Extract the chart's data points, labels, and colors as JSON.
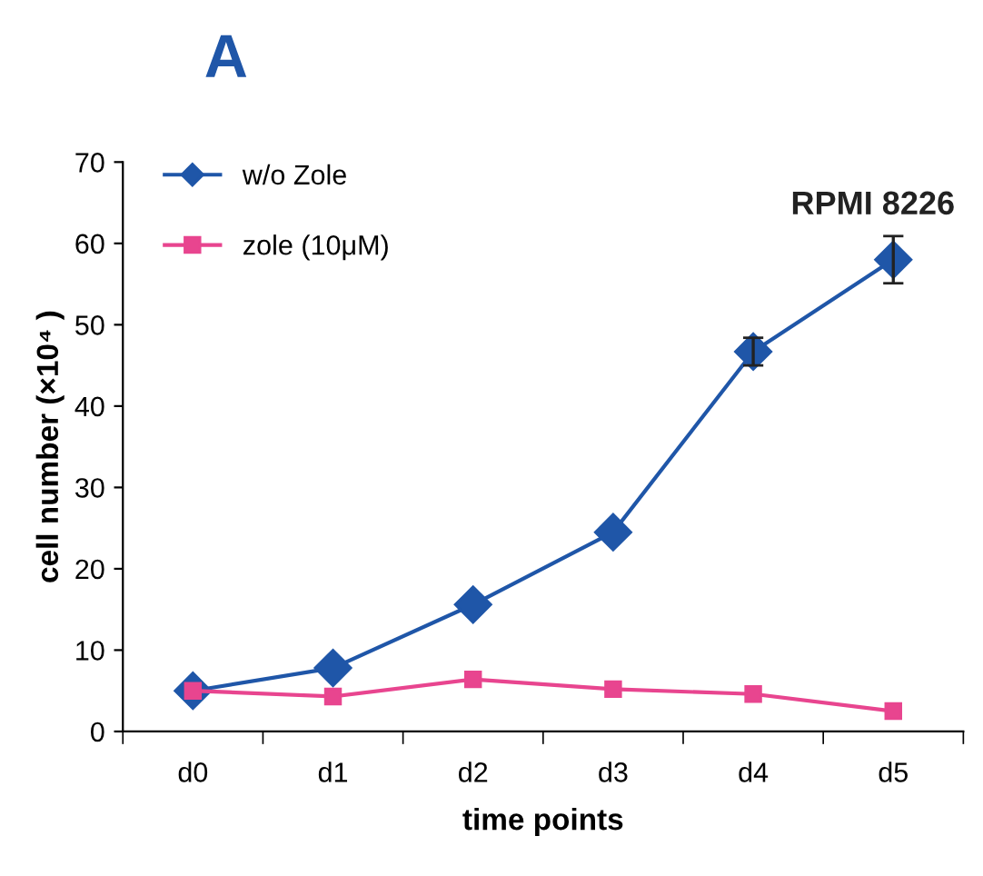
{
  "chart_data": {
    "type": "line",
    "title": "RPMI 8226",
    "xlabel": "time points",
    "ylabel": "cell number (×10⁴ )",
    "annotations": [
      "A"
    ],
    "categories": [
      "d0",
      "d1",
      "d2",
      "d3",
      "d4",
      "d5"
    ],
    "series": [
      {
        "name": "w/o Zole",
        "color": "#1f56a8",
        "marker": "diamond",
        "values": [
          5,
          7.8,
          15.6,
          24.5,
          46.7,
          58
        ],
        "errors": [
          null,
          null,
          null,
          null,
          1.7,
          2.9
        ]
      },
      {
        "name": "zole (10μM)",
        "color": "#e8458f",
        "marker": "square",
        "values": [
          5,
          4.3,
          6.4,
          5.2,
          4.6,
          2.5
        ]
      }
    ],
    "ylim": [
      0,
      70
    ],
    "yticks": [
      0,
      10,
      20,
      30,
      40,
      50,
      60,
      70
    ],
    "grid": false,
    "legend": "top left"
  }
}
